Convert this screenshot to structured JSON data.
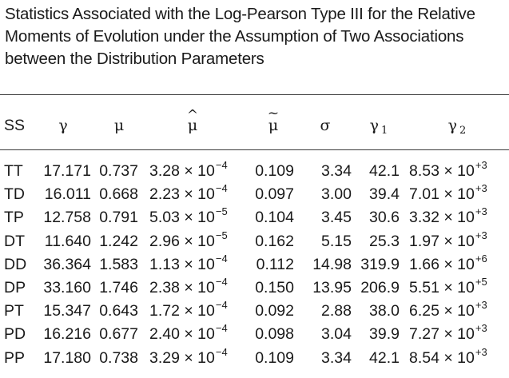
{
  "caption": {
    "line1": "Statistics Associated with the Log-Pearson Type III for the Relative",
    "line2": "Moments of Evolution under the Assumption of Two Associations",
    "line3": "between the Distribution Parameters"
  },
  "headers": {
    "ss": "SS",
    "gamma": "γ",
    "mu": "μ",
    "mu_hat": "μ",
    "mu_tilde": "μ",
    "sigma": "σ",
    "gamma1": "γ",
    "gamma1_sub": "1",
    "gamma2": "γ",
    "gamma2_sub": "2"
  },
  "rows": [
    {
      "ss": "TT",
      "gamma": "17.171",
      "mu": "0.737",
      "muhat": "3.28 × 10",
      "muhat_exp": "−4",
      "mutilde": "0.109",
      "sigma": "3.34",
      "g1": "42.1",
      "g2": "8.53 × 10",
      "g2_exp": "+3"
    },
    {
      "ss": "TD",
      "gamma": "16.011",
      "mu": "0.668",
      "muhat": "2.23 × 10",
      "muhat_exp": "−4",
      "mutilde": "0.097",
      "sigma": "3.00",
      "g1": "39.4",
      "g2": "7.01 × 10",
      "g2_exp": "+3"
    },
    {
      "ss": "TP",
      "gamma": "12.758",
      "mu": "0.791",
      "muhat": "5.03 × 10",
      "muhat_exp": "−5",
      "mutilde": "0.104",
      "sigma": "3.45",
      "g1": "30.6",
      "g2": "3.32 × 10",
      "g2_exp": "+3"
    },
    {
      "ss": "DT",
      "gamma": "11.640",
      "mu": "1.242",
      "muhat": "2.96 × 10",
      "muhat_exp": "−5",
      "mutilde": "0.162",
      "sigma": "5.15",
      "g1": "25.3",
      "g2": "1.97 × 10",
      "g2_exp": "+3"
    },
    {
      "ss": "DD",
      "gamma": "36.364",
      "mu": "1.583",
      "muhat": "1.13 × 10",
      "muhat_exp": "−4",
      "mutilde": "0.112",
      "sigma": "14.98",
      "g1": "319.9",
      "g2": "1.66 × 10",
      "g2_exp": "+6"
    },
    {
      "ss": "DP",
      "gamma": "33.160",
      "mu": "1.746",
      "muhat": "2.38 × 10",
      "muhat_exp": "−4",
      "mutilde": "0.150",
      "sigma": "13.95",
      "g1": "206.9",
      "g2": "5.51 × 10",
      "g2_exp": "+5"
    },
    {
      "ss": "PT",
      "gamma": "15.347",
      "mu": "0.643",
      "muhat": "1.72 × 10",
      "muhat_exp": "−4",
      "mutilde": "0.092",
      "sigma": "2.88",
      "g1": "38.0",
      "g2": "6.25 × 10",
      "g2_exp": "+3"
    },
    {
      "ss": "PD",
      "gamma": "16.216",
      "mu": "0.677",
      "muhat": "2.40 × 10",
      "muhat_exp": "−4",
      "mutilde": "0.098",
      "sigma": "3.04",
      "g1": "39.9",
      "g2": "7.27 × 10",
      "g2_exp": "+3"
    },
    {
      "ss": "PP",
      "gamma": "17.180",
      "mu": "0.738",
      "muhat": "3.29 × 10",
      "muhat_exp": "−4",
      "mutilde": "0.109",
      "sigma": "3.34",
      "g1": "42.1",
      "g2": "8.54 × 10",
      "g2_exp": "+3"
    }
  ]
}
